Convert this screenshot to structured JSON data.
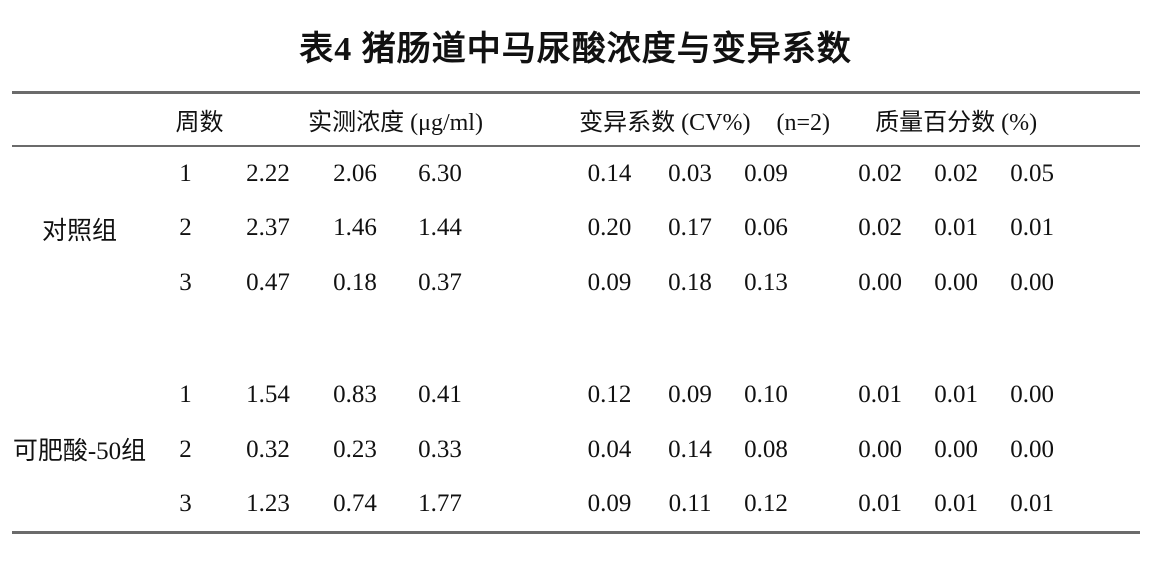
{
  "title": "表4 猪肠道中马尿酸浓度与变异系数",
  "table": {
    "headers": {
      "week": "周数",
      "concentration": "实测浓度 (μg/ml)",
      "cv": "变异系数 (CV%)",
      "n": "(n=2)",
      "mass_percent": "质量百分数 (%)"
    },
    "groups": [
      {
        "label": "对照组",
        "rows": [
          {
            "week": "1",
            "conc": [
              "2.22",
              "2.06",
              "6.30"
            ],
            "cv": [
              "0.14",
              "0.03",
              "0.09"
            ],
            "mass": [
              "0.02",
              "0.02",
              "0.05"
            ]
          },
          {
            "week": "2",
            "conc": [
              "2.37",
              "1.46",
              "1.44"
            ],
            "cv": [
              "0.20",
              "0.17",
              "0.06"
            ],
            "mass": [
              "0.02",
              "0.01",
              "0.01"
            ]
          },
          {
            "week": "3",
            "conc": [
              "0.47",
              "0.18",
              "0.37"
            ],
            "cv": [
              "0.09",
              "0.18",
              "0.13"
            ],
            "mass": [
              "0.00",
              "0.00",
              "0.00"
            ]
          }
        ]
      },
      {
        "label": "可肥酸-50组",
        "rows": [
          {
            "week": "1",
            "conc": [
              "1.54",
              "0.83",
              "0.41"
            ],
            "cv": [
              "0.12",
              "0.09",
              "0.10"
            ],
            "mass": [
              "0.01",
              "0.01",
              "0.00"
            ]
          },
          {
            "week": "2",
            "conc": [
              "0.32",
              "0.23",
              "0.33"
            ],
            "cv": [
              "0.04",
              "0.14",
              "0.08"
            ],
            "mass": [
              "0.00",
              "0.00",
              "0.00"
            ]
          },
          {
            "week": "3",
            "conc": [
              "1.23",
              "0.74",
              "1.77"
            ],
            "cv": [
              "0.09",
              "0.11",
              "0.12"
            ],
            "mass": [
              "0.01",
              "0.01",
              "0.01"
            ]
          }
        ]
      }
    ]
  },
  "colors": {
    "background": "#ffffff",
    "text": "#111111",
    "rule": "#6b6b6b"
  }
}
